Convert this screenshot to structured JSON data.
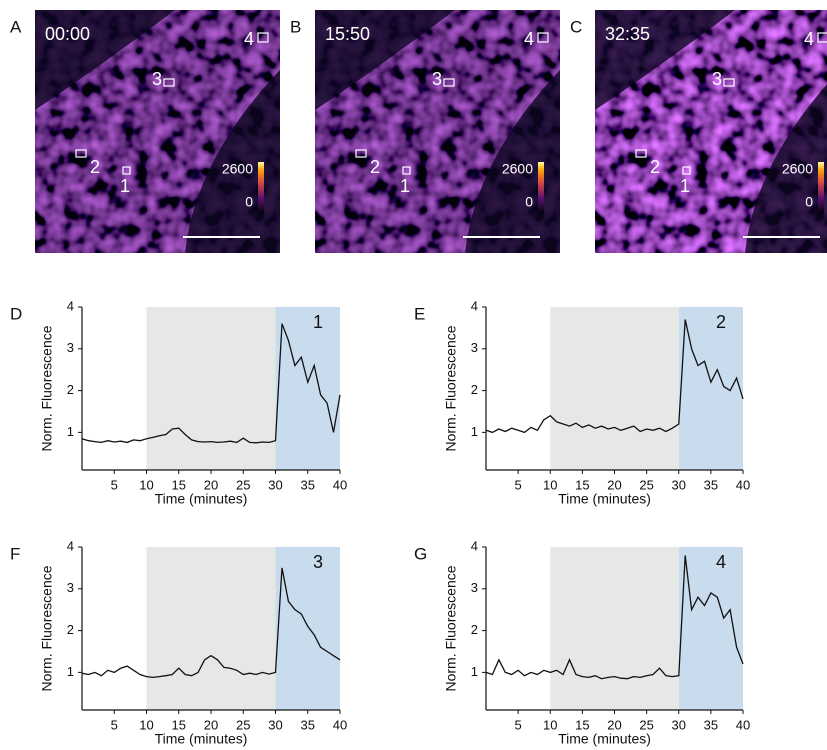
{
  "images": [
    {
      "panel": "A",
      "time": "00:00",
      "scale_max": "2600",
      "scale_min": "0",
      "rois": [
        "1",
        "2",
        "3",
        "4"
      ]
    },
    {
      "panel": "B",
      "time": "15:50",
      "scale_max": "2600",
      "scale_min": "0",
      "rois": [
        "1",
        "2",
        "3",
        "4"
      ]
    },
    {
      "panel": "C",
      "time": "32:35",
      "scale_max": "2600",
      "scale_min": "0",
      "rois": [
        "1",
        "2",
        "3",
        "4"
      ]
    }
  ],
  "chart_data": [
    {
      "panel": "D",
      "type": "line",
      "label": "1",
      "xlabel": "Time (minutes)",
      "ylabel": "Norm. Fluorescence",
      "x": [
        0,
        1,
        2,
        3,
        4,
        5,
        6,
        7,
        8,
        9,
        10,
        11,
        12,
        13,
        14,
        15,
        16,
        17,
        18,
        19,
        20,
        21,
        22,
        23,
        24,
        25,
        26,
        27,
        28,
        29,
        30,
        31,
        32,
        33,
        34,
        35,
        36,
        37,
        38,
        39,
        40
      ],
      "series": [
        {
          "color": "#111111",
          "values": [
            0.85,
            0.8,
            0.78,
            0.76,
            0.8,
            0.77,
            0.79,
            0.76,
            0.82,
            0.8,
            0.85,
            0.88,
            0.92,
            0.95,
            1.08,
            1.1,
            0.95,
            0.82,
            0.78,
            0.77,
            0.78,
            0.76,
            0.77,
            0.79,
            0.76,
            0.86,
            0.76,
            0.75,
            0.77,
            0.76,
            0.8,
            3.6,
            3.2,
            2.6,
            2.8,
            2.2,
            2.6,
            1.9,
            1.7,
            1.0,
            1.9
          ]
        }
      ],
      "xlim": [
        0,
        40
      ],
      "ylim": [
        0.1,
        4
      ],
      "xticks": [
        5,
        10,
        15,
        20,
        25,
        30,
        35,
        40
      ],
      "yticks": [
        1,
        2,
        3,
        4
      ],
      "spans": [
        {
          "x0": 10,
          "x1": 30,
          "color": "#e6e8e6"
        },
        {
          "x0": 30,
          "x1": 40,
          "color": "#c9dcee"
        }
      ]
    },
    {
      "panel": "E",
      "type": "line",
      "label": "2",
      "xlabel": "Time (minutes)",
      "ylabel": "Norm. Fluorescence",
      "x": [
        0,
        1,
        2,
        3,
        4,
        5,
        6,
        7,
        8,
        9,
        10,
        11,
        12,
        13,
        14,
        15,
        16,
        17,
        18,
        19,
        20,
        21,
        22,
        23,
        24,
        25,
        26,
        27,
        28,
        29,
        30,
        31,
        32,
        33,
        34,
        35,
        36,
        37,
        38,
        39,
        40
      ],
      "series": [
        {
          "color": "#111111",
          "values": [
            1.05,
            1.0,
            1.08,
            1.02,
            1.1,
            1.05,
            1.0,
            1.12,
            1.05,
            1.3,
            1.4,
            1.25,
            1.2,
            1.15,
            1.22,
            1.12,
            1.18,
            1.1,
            1.15,
            1.08,
            1.12,
            1.05,
            1.1,
            1.15,
            1.02,
            1.08,
            1.05,
            1.1,
            1.02,
            1.1,
            1.2,
            3.7,
            3.0,
            2.6,
            2.7,
            2.2,
            2.5,
            2.1,
            2.0,
            2.3,
            1.8
          ]
        }
      ],
      "xlim": [
        0,
        40
      ],
      "ylim": [
        0.1,
        4
      ],
      "xticks": [
        5,
        10,
        15,
        20,
        25,
        30,
        35,
        40
      ],
      "yticks": [
        1,
        2,
        3,
        4
      ],
      "spans": [
        {
          "x0": 10,
          "x1": 30,
          "color": "#e6e8e6"
        },
        {
          "x0": 30,
          "x1": 40,
          "color": "#c9dcee"
        }
      ]
    },
    {
      "panel": "F",
      "type": "line",
      "label": "3",
      "xlabel": "Time (minutes)",
      "ylabel": "Norm. Fluorescence",
      "x": [
        0,
        1,
        2,
        3,
        4,
        5,
        6,
        7,
        8,
        9,
        10,
        11,
        12,
        13,
        14,
        15,
        16,
        17,
        18,
        19,
        20,
        21,
        22,
        23,
        24,
        25,
        26,
        27,
        28,
        29,
        30,
        31,
        32,
        33,
        34,
        35,
        36,
        37,
        38,
        39,
        40
      ],
      "series": [
        {
          "color": "#111111",
          "values": [
            0.98,
            0.95,
            1.0,
            0.92,
            1.05,
            1.0,
            1.1,
            1.15,
            1.05,
            0.95,
            0.9,
            0.88,
            0.9,
            0.92,
            0.95,
            1.1,
            0.95,
            0.92,
            1.0,
            1.3,
            1.4,
            1.3,
            1.12,
            1.1,
            1.05,
            0.95,
            0.98,
            0.95,
            1.0,
            0.96,
            1.0,
            3.5,
            2.7,
            2.5,
            2.4,
            2.1,
            1.9,
            1.6,
            1.5,
            1.4,
            1.3
          ]
        }
      ],
      "xlim": [
        0,
        40
      ],
      "ylim": [
        0.1,
        4
      ],
      "xticks": [
        5,
        10,
        15,
        20,
        25,
        30,
        35,
        40
      ],
      "yticks": [
        1,
        2,
        3,
        4
      ],
      "spans": [
        {
          "x0": 10,
          "x1": 30,
          "color": "#e6e8e6"
        },
        {
          "x0": 30,
          "x1": 40,
          "color": "#c9dcee"
        }
      ]
    },
    {
      "panel": "G",
      "type": "line",
      "label": "4",
      "xlabel": "Time (minutes)",
      "ylabel": "Norm. Fluorescence",
      "x": [
        0,
        1,
        2,
        3,
        4,
        5,
        6,
        7,
        8,
        9,
        10,
        11,
        12,
        13,
        14,
        15,
        16,
        17,
        18,
        19,
        20,
        21,
        22,
        23,
        24,
        25,
        26,
        27,
        28,
        29,
        30,
        31,
        32,
        33,
        34,
        35,
        36,
        37,
        38,
        39,
        40
      ],
      "series": [
        {
          "color": "#111111",
          "values": [
            1.0,
            0.95,
            1.3,
            1.0,
            0.95,
            1.05,
            0.92,
            1.0,
            0.95,
            1.05,
            1.0,
            1.05,
            0.95,
            1.3,
            0.95,
            0.9,
            0.88,
            0.92,
            0.85,
            0.88,
            0.9,
            0.86,
            0.85,
            0.9,
            0.88,
            0.92,
            0.95,
            1.1,
            0.92,
            0.9,
            0.92,
            3.8,
            2.5,
            2.8,
            2.6,
            2.9,
            2.8,
            2.3,
            2.5,
            1.6,
            1.2
          ]
        }
      ],
      "xlim": [
        0,
        40
      ],
      "ylim": [
        0.1,
        4
      ],
      "xticks": [
        5,
        10,
        15,
        20,
        25,
        30,
        35,
        40
      ],
      "yticks": [
        1,
        2,
        3,
        4
      ],
      "spans": [
        {
          "x0": 10,
          "x1": 30,
          "color": "#e6e8e6"
        },
        {
          "x0": 30,
          "x1": 40,
          "color": "#c9dcee"
        }
      ]
    }
  ]
}
